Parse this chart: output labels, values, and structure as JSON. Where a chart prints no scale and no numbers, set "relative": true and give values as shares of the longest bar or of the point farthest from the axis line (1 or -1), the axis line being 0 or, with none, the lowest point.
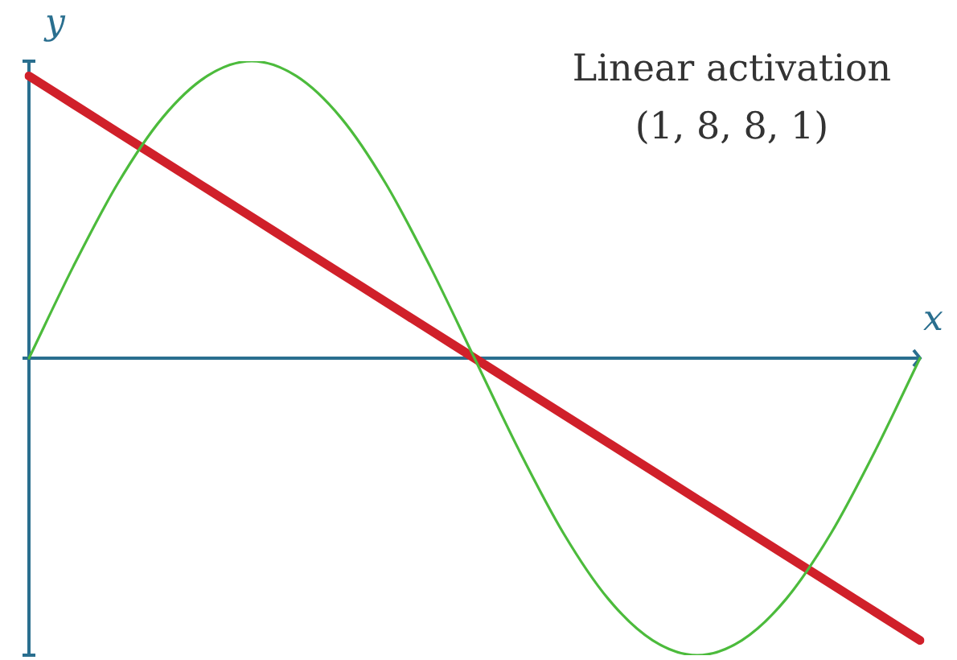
{
  "chart_data": {
    "type": "line",
    "title": "Linear activation",
    "subtitle": "(1, 8, 8, 1)",
    "xlabel": "x",
    "ylabel": "y",
    "relative": true,
    "ref_lines": [
      {
        "axis": "y",
        "value": 0,
        "color": "#2a6f8f"
      }
    ],
    "categories": [
      null,
      null,
      null,
      null,
      null,
      null,
      null,
      null,
      null,
      null,
      null,
      null,
      null,
      null,
      null,
      null,
      null,
      null,
      null,
      null,
      null
    ],
    "series": [
      {
        "color": "#4cbb3c",
        "values": [
          0,
          0.31,
          0.59,
          0.81,
          0.95,
          1,
          0.95,
          0.81,
          0.59,
          0.31,
          0,
          -0.31,
          -0.59,
          -0.81,
          -0.95,
          -1,
          -0.95,
          -0.81,
          -0.59,
          -0.31,
          0
        ]
      },
      {
        "color": "#d0202a",
        "values": [
          0.95,
          0.855,
          0.76,
          0.665,
          0.57,
          0.475,
          0.38,
          0.285,
          0.19,
          0.095,
          0,
          -0.095,
          -0.19,
          -0.285,
          -0.38,
          -0.475,
          -0.57,
          -0.665,
          -0.76,
          -0.855,
          -0.95
        ]
      }
    ]
  }
}
